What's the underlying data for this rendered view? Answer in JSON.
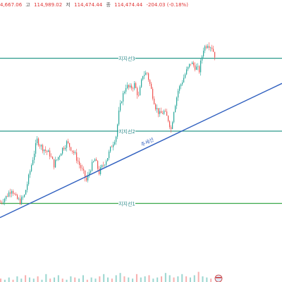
{
  "header": {
    "open_partial": "4,667.06",
    "high_label": "고",
    "high_value": "114,989.02",
    "low_label": "저",
    "low_value": "114,474.44",
    "close_label": "종",
    "close_value": "114,474.44",
    "change": "-204.03 (-0.18%)"
  },
  "chart_data": {
    "type": "candlestick",
    "colors": {
      "up": "#26a69a",
      "down": "#ef5350",
      "support1": "#3aa84a",
      "support2": "#2c9a8c",
      "support3": "#2c9a8c",
      "trend": "#2f5fbf"
    },
    "y_domain": [
      0,
      400
    ],
    "levels": [
      {
        "name": "지지선3",
        "value": 325,
        "color": "#2c9a8c"
      },
      {
        "name": "지지선2",
        "value": 212,
        "color": "#2c9a8c"
      },
      {
        "name": "지지선1",
        "value": 100,
        "color": "#3aa84a"
      }
    ],
    "trendline": {
      "label": "추세선",
      "start": {
        "x": 0,
        "y": 78
      },
      "end": {
        "x": 400,
        "y": 286
      },
      "color": "#2f5fbf"
    },
    "price_path": [
      [
        0,
        102
      ],
      [
        8,
        110
      ],
      [
        16,
        123
      ],
      [
        22,
        108
      ],
      [
        28,
        103
      ],
      [
        34,
        112
      ],
      [
        40,
        140
      ],
      [
        46,
        170
      ],
      [
        52,
        198
      ],
      [
        58,
        188
      ],
      [
        64,
        182
      ],
      [
        70,
        176
      ],
      [
        76,
        160
      ],
      [
        82,
        172
      ],
      [
        88,
        185
      ],
      [
        94,
        194
      ],
      [
        100,
        186
      ],
      [
        106,
        175
      ],
      [
        112,
        160
      ],
      [
        118,
        146
      ],
      [
        122,
        135
      ],
      [
        128,
        155
      ],
      [
        134,
        168
      ],
      [
        140,
        148
      ],
      [
        146,
        160
      ],
      [
        152,
        172
      ],
      [
        158,
        190
      ],
      [
        164,
        205
      ],
      [
        168,
        240
      ],
      [
        172,
        262
      ],
      [
        178,
        282
      ],
      [
        184,
        278
      ],
      [
        190,
        284
      ],
      [
        196,
        265
      ],
      [
        202,
        300
      ],
      [
        208,
        302
      ],
      [
        214,
        276
      ],
      [
        220,
        250
      ],
      [
        226,
        238
      ],
      [
        232,
        242
      ],
      [
        238,
        230
      ],
      [
        242,
        215
      ],
      [
        246,
        245
      ],
      [
        252,
        275
      ],
      [
        258,
        290
      ],
      [
        264,
        305
      ],
      [
        270,
        318
      ],
      [
        276,
        312
      ],
      [
        282,
        306
      ],
      [
        288,
        340
      ],
      [
        294,
        348
      ],
      [
        300,
        342
      ],
      [
        304,
        330
      ]
    ],
    "volume": [
      3,
      2,
      4,
      2,
      5,
      3,
      6,
      4,
      3,
      5,
      2,
      7,
      3,
      4,
      6,
      3,
      2,
      5,
      4,
      3,
      6,
      2,
      4,
      3,
      5,
      7,
      4,
      3,
      6,
      8,
      5,
      4,
      3,
      7,
      4,
      5,
      6,
      3,
      4,
      5,
      8,
      6,
      4,
      5,
      7,
      5,
      4,
      6,
      9,
      5,
      4,
      3
    ]
  }
}
